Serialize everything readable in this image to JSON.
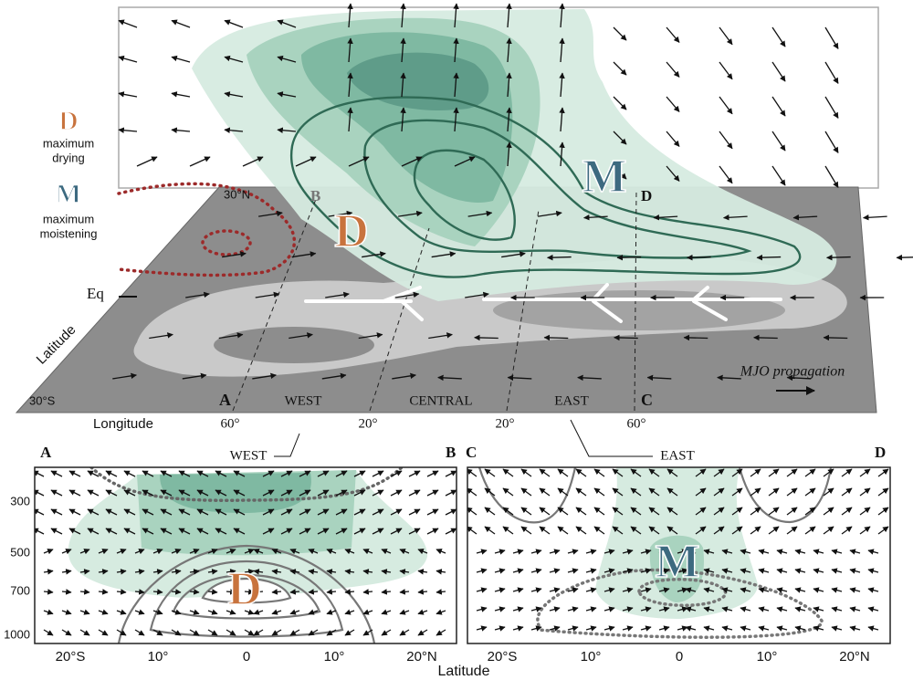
{
  "legend": [
    {
      "letter": "D",
      "lines": [
        "maximum",
        "drying"
      ]
    },
    {
      "letter": "M",
      "lines": [
        "maximum",
        "moistening"
      ]
    }
  ],
  "top_panel": {
    "lat_labels": [
      "30°N",
      "Eq",
      "30°S"
    ],
    "latitude_label": "Latitude",
    "longitude_label": "Longitude",
    "corners": [
      "A",
      "B",
      "C",
      "D"
    ],
    "regions": [
      "WEST",
      "CENTRAL",
      "EAST"
    ],
    "lon_ticks": [
      "60°",
      "20°",
      "20°",
      "60°"
    ],
    "propagation": "MJO propagation",
    "drying_marker": "D",
    "moistening_marker": "M"
  },
  "bottom_panels": [
    {
      "corners": [
        "A",
        "B"
      ],
      "region": "WEST",
      "marker": "D",
      "y_ticks": [
        "300",
        "500",
        "700",
        "1000"
      ],
      "x_ticks": [
        "20°S",
        "10°",
        "0",
        "10°",
        "20°N"
      ]
    },
    {
      "corners": [
        "C",
        "D"
      ],
      "region": "EAST",
      "marker": "M",
      "x_ticks": [
        "20°S",
        "10°",
        "0",
        "10°",
        "20°N"
      ]
    }
  ],
  "x_axis_label": "Latitude"
}
